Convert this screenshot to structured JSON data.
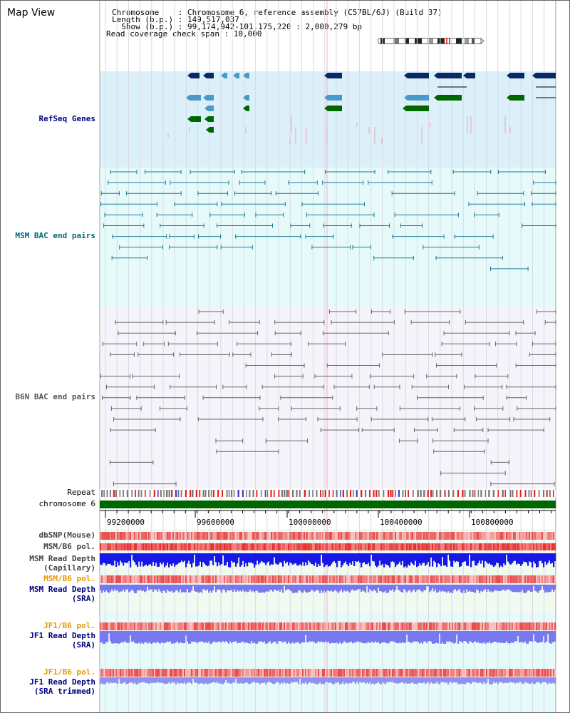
{
  "header": {
    "title": "Map View",
    "chromosome_line": "Chromosome    : Chromosome 6, reference assembly (C57BL/6J) (Build 37)",
    "length_line": "Length (b.p.) : 149,517,037",
    "show_line": "  Show (b.p.) : 99,174,942-101,175,220 : 2,000,279 bp",
    "span_line": "Read coverage check span : 10,000"
  },
  "tracks": {
    "refseq": "RefSeq Genes",
    "msm_bac": "MSM BAC end pairs",
    "b6n_bac": "B6N BAC end pairs",
    "repeat": "Repeat",
    "chromosome": "chromosome 6",
    "dbsnp": "dbSNP(Mouse)",
    "msm_pol1": "MSM/B6 pol.",
    "msm_depth_cap_1": "MSM Read Depth",
    "msm_depth_cap_2": "(Capillary)",
    "msm_pol2": "MSM/B6 pol.",
    "msm_depth_sra_1": "MSM Read Depth",
    "msm_depth_sra_2": "(SRA)",
    "jf1_pol1": "JF1/B6 pol.",
    "jf1_depth_sra_1": "JF1 Read Depth",
    "jf1_depth_sra_2": "(SRA)",
    "jf1_pol2": "JF1/B6 pol.",
    "jf1_depth_trim_1": "JF1 Read Depth",
    "jf1_depth_trim_2": "(SRA trimmed)"
  },
  "axis": {
    "ticks": [
      "99200000",
      "99600000",
      "100000000",
      "100400000",
      "100800000"
    ]
  },
  "colors": {
    "refseq_bg": "#dcf0fa",
    "msm_bg": "#e6fafa",
    "b6n_bg": "#f4f4fa",
    "gene_dark": "#0a2a66",
    "gene_mid": "#4a9ac8",
    "gene_green": "#006600",
    "msm_pair": "#1a7a9a",
    "b6n_pair": "#666666",
    "chromosome_bar": "#006600",
    "depth_capillary": "#1818e6",
    "depth_sra": "#7878f0",
    "label_gray": "#333333",
    "label_blue": "#000080",
    "label_orange": "#e69900",
    "label_teal": "#006a7a"
  }
}
